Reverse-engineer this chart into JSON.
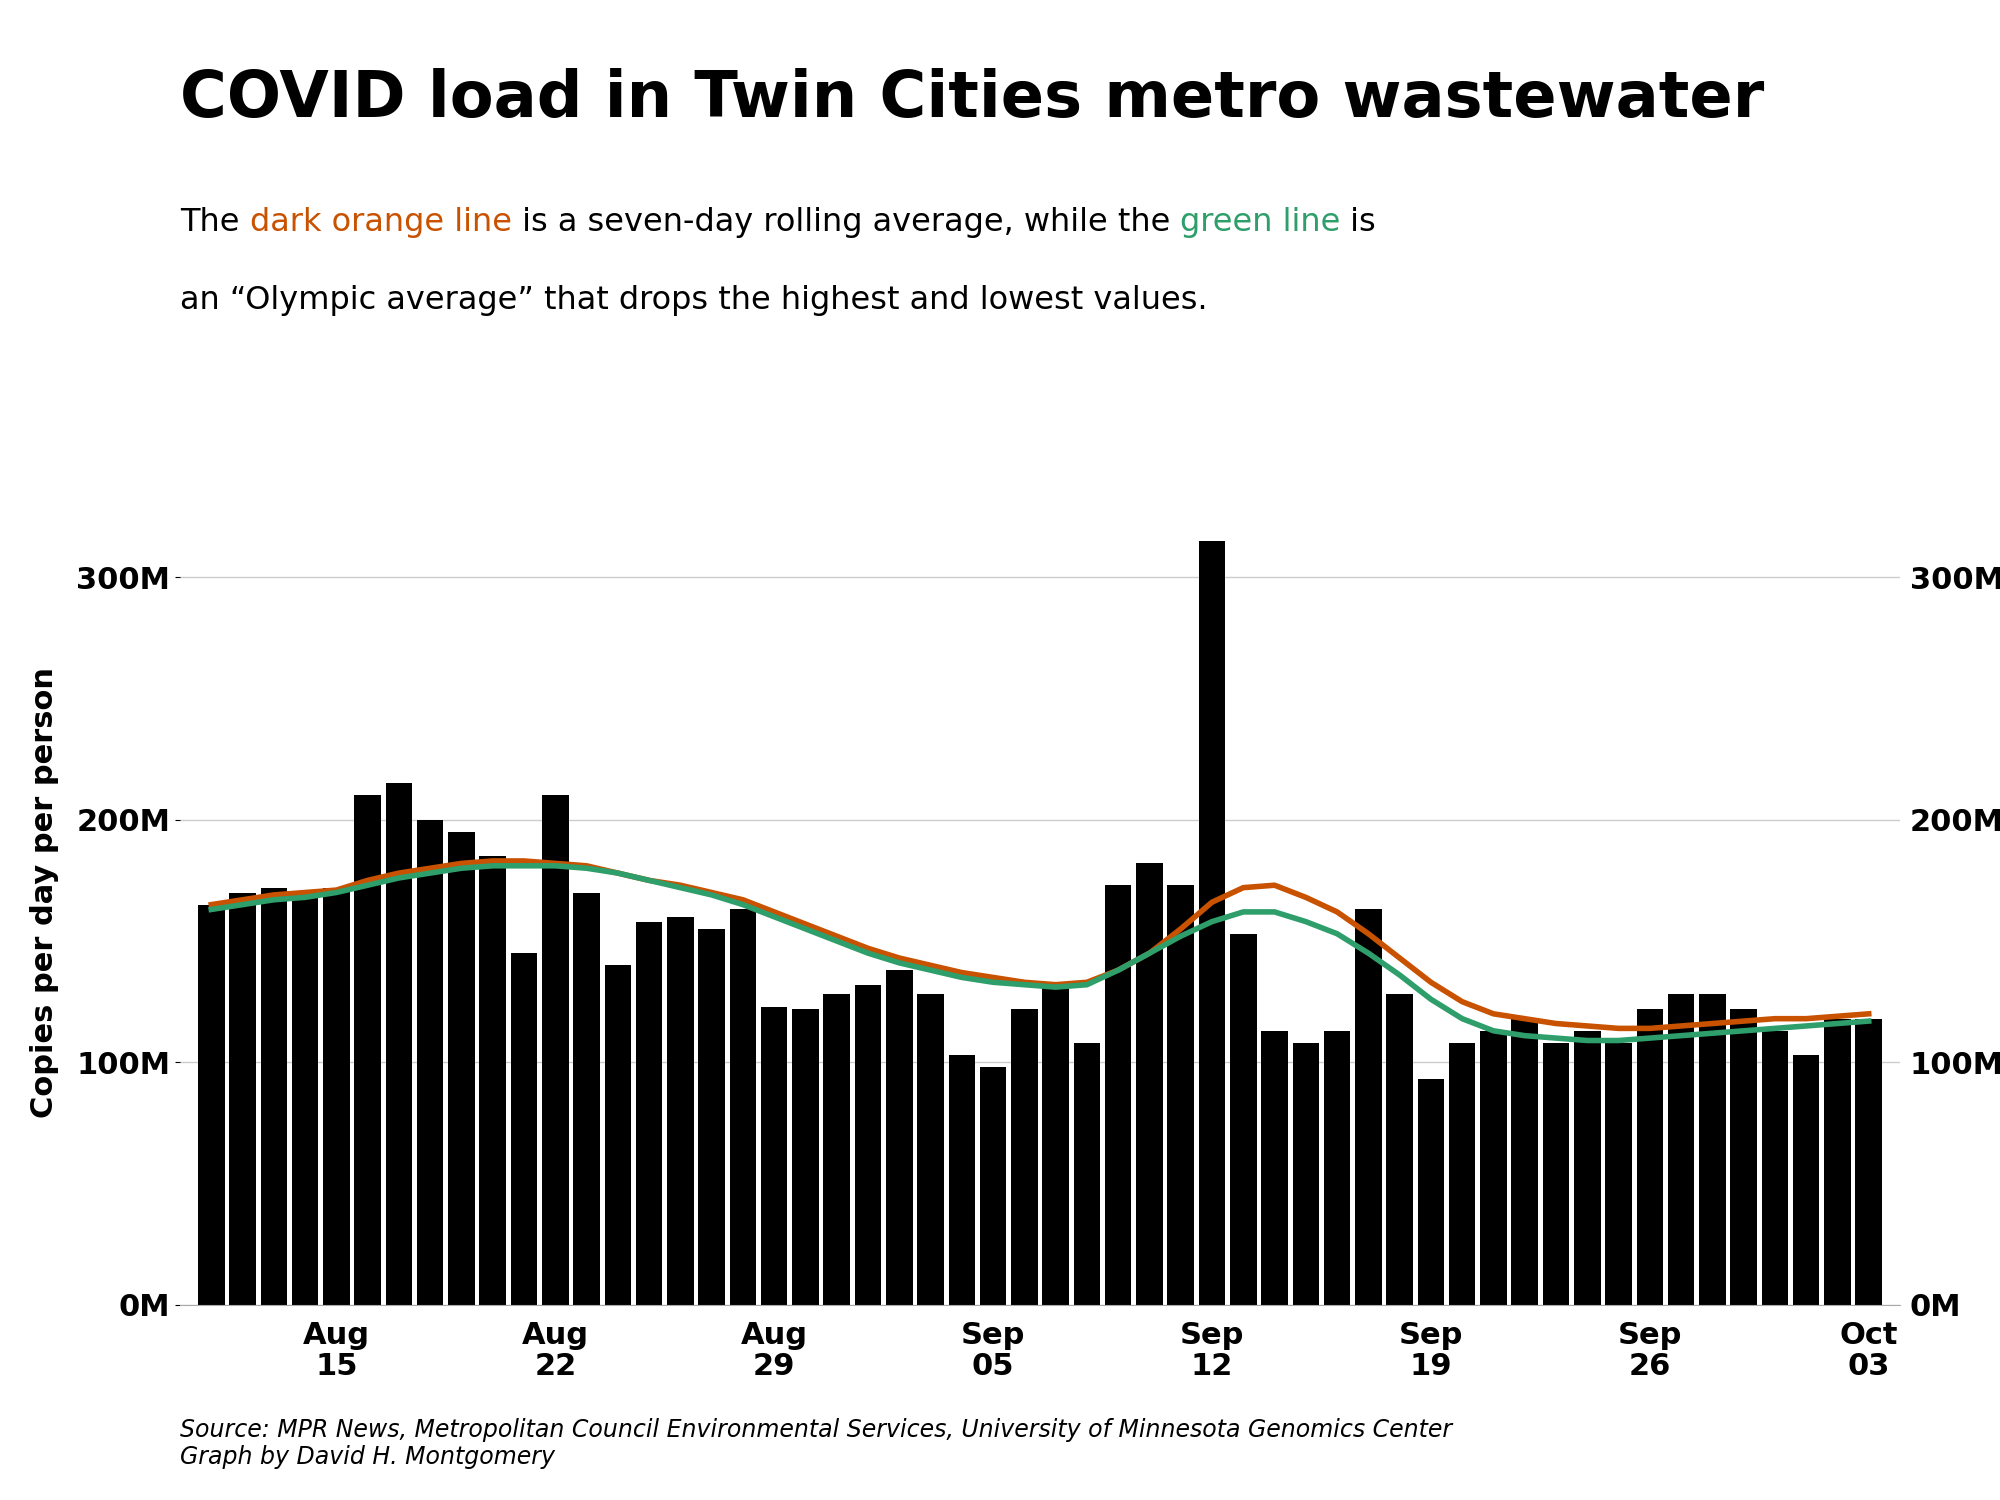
{
  "title": "COVID load in Twin Cities metro wastewater",
  "ylabel": "Copies per day per person",
  "source_text": "Source: MPR News, Metropolitan Council Environmental Services, University of Minnesota Genomics Center\nGraph by David H. Montgomery",
  "bar_color": "#000000",
  "orange_color": "#C85200",
  "green_color": "#2E9E6B",
  "background_color": "#ffffff",
  "ylim": [
    0,
    340000000
  ],
  "yticks": [
    0,
    100000000,
    200000000,
    300000000
  ],
  "ytick_labels": [
    "0M",
    "100M",
    "200M",
    "300M"
  ],
  "x_tick_labels": [
    "Aug\n15",
    "Aug\n22",
    "Aug\n29",
    "Sep\n05",
    "Sep\n12",
    "Sep\n19",
    "Sep\n26",
    "Oct\n03"
  ],
  "x_tick_positions": [
    4,
    11,
    18,
    25,
    32,
    39,
    46,
    53
  ],
  "bar_values": [
    165000000,
    170000000,
    172000000,
    168000000,
    172000000,
    210000000,
    215000000,
    200000000,
    195000000,
    185000000,
    145000000,
    210000000,
    170000000,
    140000000,
    158000000,
    160000000,
    155000000,
    163000000,
    123000000,
    122000000,
    128000000,
    132000000,
    138000000,
    128000000,
    103000000,
    98000000,
    122000000,
    132000000,
    108000000,
    173000000,
    182000000,
    173000000,
    315000000,
    153000000,
    113000000,
    108000000,
    113000000,
    163000000,
    128000000,
    93000000,
    108000000,
    113000000,
    118000000,
    108000000,
    113000000,
    108000000,
    122000000,
    128000000,
    128000000,
    122000000,
    113000000,
    103000000,
    118000000,
    118000000
  ],
  "orange_values": [
    165000000,
    167000000,
    169000000,
    170000000,
    171000000,
    175000000,
    178000000,
    180000000,
    182000000,
    183000000,
    183000000,
    182000000,
    181000000,
    178000000,
    175000000,
    173000000,
    170000000,
    167000000,
    162000000,
    157000000,
    152000000,
    147000000,
    143000000,
    140000000,
    137000000,
    135000000,
    133000000,
    132000000,
    133000000,
    138000000,
    145000000,
    155000000,
    166000000,
    172000000,
    173000000,
    168000000,
    162000000,
    153000000,
    143000000,
    133000000,
    125000000,
    120000000,
    118000000,
    116000000,
    115000000,
    114000000,
    114000000,
    115000000,
    116000000,
    117000000,
    118000000,
    118000000,
    119000000,
    120000000
  ],
  "green_values": [
    163000000,
    165000000,
    167000000,
    168000000,
    170000000,
    173000000,
    176000000,
    178000000,
    180000000,
    181000000,
    181000000,
    181000000,
    180000000,
    178000000,
    175000000,
    172000000,
    169000000,
    165000000,
    160000000,
    155000000,
    150000000,
    145000000,
    141000000,
    138000000,
    135000000,
    133000000,
    132000000,
    131000000,
    132000000,
    138000000,
    145000000,
    152000000,
    158000000,
    162000000,
    162000000,
    158000000,
    153000000,
    145000000,
    136000000,
    126000000,
    118000000,
    113000000,
    111000000,
    110000000,
    109000000,
    109000000,
    110000000,
    111000000,
    112000000,
    113000000,
    114000000,
    115000000,
    116000000,
    117000000
  ],
  "title_fontsize": 46,
  "subtitle_fontsize": 23,
  "tick_fontsize": 22,
  "ylabel_fontsize": 22,
  "source_fontsize": 17
}
